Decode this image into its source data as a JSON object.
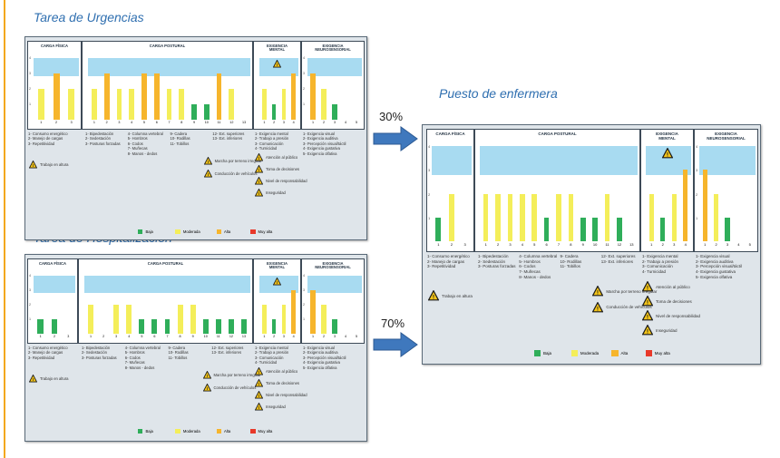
{
  "titles": {
    "urgencias": "Tarea de Urgencias",
    "hospitalizacion": "Tarea de Hospitalización",
    "enfermera": "Puesto de enfermera"
  },
  "arrows": {
    "top_pct": "30%",
    "bottom_pct": "70%"
  },
  "colors": {
    "baja": "#2fae5a",
    "moderada": "#f4ee5a",
    "alta": "#f6b52c",
    "muy_alta": "#e8392a",
    "band": "#a8dbf1",
    "accent": "#f3a81e",
    "arrow": "#3f78bd",
    "title": "#2f6fb0"
  },
  "section_titles": {
    "fisica": "CARGA FÍSICA",
    "postural": "CARGA POSTURAL",
    "mental": [
      "EXIGENCIA",
      "MENTAL"
    ],
    "neuro": [
      "EXIGENCIA",
      "NEUROSENSORIAL"
    ]
  },
  "legend": [
    {
      "label": "Baja",
      "key": "baja"
    },
    {
      "label": "Moderada",
      "key": "moderada"
    },
    {
      "label": "Alta",
      "key": "alta"
    },
    {
      "label": "Muy alta",
      "key": "muy_alta"
    }
  ],
  "lists": {
    "fisica": [
      "1- Consumo energético",
      "2- Manejo de cargas",
      "3- Repetitividad"
    ],
    "postural": [
      [
        "1- Bipedestación",
        "2- Sedestación",
        "3- Posturas forzadas"
      ],
      [
        "4- Columna vertebral",
        "5- Hombros",
        "6- Codos",
        "7- Muñecas",
        "8- Manos - dedos"
      ],
      [
        "9- Cadera",
        "10- Rodillas",
        "11- Tobillos"
      ],
      [
        "12- Ext. superiores",
        "13- Ext. inferiores"
      ]
    ],
    "mental": [
      "1- Exigencia mental",
      "2- Trabajo a presión",
      "3- Comunicación",
      "4- Turnicidad"
    ],
    "neuro": [
      "1- Exigencia visual",
      "2- Exigencia auditiva",
      "3- Percepción visual/táctil",
      "4- Exigencia gustativa",
      "5- Exigencia olfativa"
    ]
  },
  "risk_factors": {
    "fisica": [
      "Trabajo en altura"
    ],
    "postural": [
      "Marcha por terreno irregular",
      "Conducción de vehículos"
    ],
    "mental": [
      "Atención al público",
      "Toma de decisiones",
      "Nivel de responsabilidad",
      "Inseguridad"
    ]
  },
  "chart_data": [
    {
      "type": "bar",
      "name": "Tarea de Urgencias",
      "sections": {
        "fisica": {
          "x": [
            "1",
            "2",
            "3"
          ],
          "values": [
            2,
            3,
            2
          ],
          "levels": [
            "moderada",
            "alta",
            "moderada"
          ]
        },
        "postural": {
          "x": [
            "1",
            "2",
            "3",
            "4",
            "5",
            "6",
            "7",
            "8",
            "9",
            "10",
            "11",
            "12",
            "13"
          ],
          "values": [
            2,
            3,
            2,
            2,
            3,
            3,
            2,
            2,
            1,
            1,
            3,
            2,
            0
          ],
          "levels": [
            "moderada",
            "alta",
            "moderada",
            "moderada",
            "alta",
            "alta",
            "moderada",
            "moderada",
            "baja",
            "baja",
            "alta",
            "moderada",
            "none"
          ]
        },
        "mental": {
          "x": [
            "1",
            "2",
            "3",
            "4"
          ],
          "values": [
            2,
            1,
            2,
            3
          ],
          "levels": [
            "moderada",
            "baja",
            "moderada",
            "alta"
          ]
        },
        "neuro": {
          "x": [
            "1",
            "2",
            "3",
            "4",
            "5"
          ],
          "values": [
            3,
            2,
            1,
            0,
            0
          ],
          "levels": [
            "alta",
            "moderada",
            "baja",
            "none",
            "none"
          ]
        }
      },
      "ylim": [
        0,
        4
      ]
    },
    {
      "type": "bar",
      "name": "Tarea de Hospitalización",
      "sections": {
        "fisica": {
          "x": [
            "1",
            "2",
            "3"
          ],
          "values": [
            1,
            1,
            0
          ],
          "levels": [
            "baja",
            "baja",
            "none"
          ]
        },
        "postural": {
          "x": [
            "1",
            "2",
            "3",
            "4",
            "5",
            "6",
            "7",
            "8",
            "9",
            "10",
            "11",
            "12",
            "13"
          ],
          "values": [
            2,
            0,
            2,
            2,
            1,
            1,
            1,
            2,
            2,
            1,
            1,
            1,
            1
          ],
          "levels": [
            "moderada",
            "none",
            "moderada",
            "moderada",
            "baja",
            "baja",
            "baja",
            "moderada",
            "moderada",
            "baja",
            "baja",
            "baja",
            "baja"
          ]
        },
        "mental": {
          "x": [
            "1",
            "2",
            "3",
            "4"
          ],
          "values": [
            2,
            1,
            2,
            3
          ],
          "levels": [
            "moderada",
            "baja",
            "moderada",
            "alta"
          ]
        },
        "neuro": {
          "x": [
            "1",
            "2",
            "3",
            "4",
            "5"
          ],
          "values": [
            3,
            2,
            1,
            0,
            0
          ],
          "levels": [
            "alta",
            "moderada",
            "baja",
            "none",
            "none"
          ]
        }
      },
      "ylim": [
        0,
        4
      ]
    },
    {
      "type": "bar",
      "name": "Puesto de enfermera",
      "sections": {
        "fisica": {
          "x": [
            "1",
            "2",
            "3"
          ],
          "values": [
            1,
            2,
            0
          ],
          "levels": [
            "baja",
            "moderada",
            "none"
          ]
        },
        "postural": {
          "x": [
            "1",
            "2",
            "3",
            "4",
            "5",
            "6",
            "7",
            "8",
            "9",
            "10",
            "11",
            "12",
            "13"
          ],
          "values": [
            2,
            2,
            2,
            2,
            2,
            1,
            2,
            2,
            1,
            1,
            2,
            1,
            0
          ],
          "levels": [
            "moderada",
            "moderada",
            "moderada",
            "moderada",
            "moderada",
            "baja",
            "moderada",
            "moderada",
            "baja",
            "baja",
            "moderada",
            "baja",
            "none"
          ]
        },
        "mental": {
          "x": [
            "1",
            "2",
            "3",
            "4"
          ],
          "values": [
            2,
            1,
            2,
            3
          ],
          "levels": [
            "moderada",
            "baja",
            "moderada",
            "alta"
          ]
        },
        "neuro": {
          "x": [
            "1",
            "2",
            "3",
            "4",
            "5"
          ],
          "values": [
            3,
            2,
            1,
            0,
            0
          ],
          "levels": [
            "alta",
            "moderada",
            "baja",
            "none",
            "none"
          ]
        }
      },
      "ylim": [
        0,
        4
      ]
    }
  ]
}
